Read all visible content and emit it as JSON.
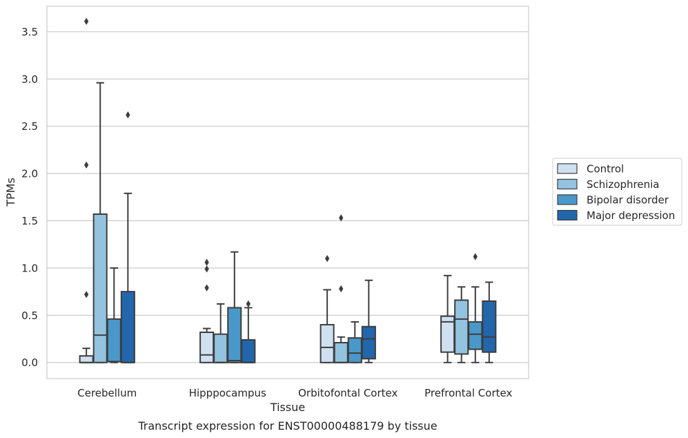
{
  "caption": "Transcript expression for ENST00000488179 by tissue",
  "colors": {
    "axes_border": "#cccccc",
    "grid": "#cccccc",
    "box_edge": "#3d3d3d",
    "text": "#262626",
    "series": [
      "#cfe0f1",
      "#93c3df",
      "#4a98c9",
      "#2266ac"
    ]
  },
  "chart_data": {
    "type": "box",
    "title": "",
    "xlabel": "Tissue",
    "ylabel": "TPMs",
    "categories": [
      "Cerebellum",
      "Hipppocampus",
      "Orbitofontal Cortex",
      "Prefrontal Cortex"
    ],
    "ylim": [
      -0.17,
      3.77
    ],
    "yticks": [
      0.0,
      0.5,
      1.0,
      1.5,
      2.0,
      2.5,
      3.0,
      3.5
    ],
    "ytick_labels": [
      "0.0",
      "0.5",
      "1.0",
      "1.5",
      "2.0",
      "2.5",
      "3.0",
      "3.5"
    ],
    "grid": true,
    "legend_position": "right",
    "series": [
      {
        "name": "Control",
        "boxes": [
          {
            "whisker_low": 0.0,
            "q1": 0.0,
            "median": 0.0,
            "q3": 0.07,
            "whisker_high": 0.15,
            "outliers": [
              0.72,
              2.09,
              3.61
            ]
          },
          {
            "whisker_low": 0.0,
            "q1": 0.0,
            "median": 0.08,
            "q3": 0.32,
            "whisker_high": 0.36,
            "outliers": [
              0.79,
              0.99,
              1.06
            ]
          },
          {
            "whisker_low": 0.0,
            "q1": 0.0,
            "median": 0.16,
            "q3": 0.4,
            "whisker_high": 0.77,
            "outliers": [
              1.1
            ]
          },
          {
            "whisker_low": 0.0,
            "q1": 0.11,
            "median": 0.43,
            "q3": 0.49,
            "whisker_high": 0.92,
            "outliers": []
          }
        ]
      },
      {
        "name": "Schizophrenia",
        "boxes": [
          {
            "whisker_low": 0.0,
            "q1": 0.0,
            "median": 0.29,
            "q3": 1.57,
            "whisker_high": 2.96,
            "outliers": []
          },
          {
            "whisker_low": 0.0,
            "q1": 0.0,
            "median": 0.0,
            "q3": 0.3,
            "whisker_high": 0.62,
            "outliers": []
          },
          {
            "whisker_low": 0.0,
            "q1": 0.0,
            "median": 0.0,
            "q3": 0.21,
            "whisker_high": 0.27,
            "outliers": [
              0.78,
              1.53
            ]
          },
          {
            "whisker_low": 0.0,
            "q1": 0.09,
            "median": 0.46,
            "q3": 0.66,
            "whisker_high": 0.8,
            "outliers": []
          }
        ]
      },
      {
        "name": "Bipolar disorder",
        "boxes": [
          {
            "whisker_low": 0.0,
            "q1": 0.01,
            "median": 0.01,
            "q3": 0.46,
            "whisker_high": 1.0,
            "outliers": []
          },
          {
            "whisker_low": 0.0,
            "q1": 0.0,
            "median": 0.02,
            "q3": 0.58,
            "whisker_high": 1.17,
            "outliers": []
          },
          {
            "whisker_low": 0.0,
            "q1": 0.0,
            "median": 0.1,
            "q3": 0.26,
            "whisker_high": 0.43,
            "outliers": []
          },
          {
            "whisker_low": 0.0,
            "q1": 0.14,
            "median": 0.3,
            "q3": 0.43,
            "whisker_high": 0.8,
            "outliers": [
              1.12
            ]
          }
        ]
      },
      {
        "name": "Major depression",
        "boxes": [
          {
            "whisker_low": 0.0,
            "q1": 0.0,
            "median": 0.0,
            "q3": 0.75,
            "whisker_high": 1.79,
            "outliers": [
              2.62
            ]
          },
          {
            "whisker_low": 0.0,
            "q1": 0.0,
            "median": 0.0,
            "q3": 0.24,
            "whisker_high": 0.58,
            "outliers": [
              0.62
            ]
          },
          {
            "whisker_low": 0.0,
            "q1": 0.04,
            "median": 0.25,
            "q3": 0.38,
            "whisker_high": 0.87,
            "outliers": []
          },
          {
            "whisker_low": 0.0,
            "q1": 0.11,
            "median": 0.27,
            "q3": 0.65,
            "whisker_high": 0.85,
            "outliers": []
          }
        ]
      }
    ]
  }
}
